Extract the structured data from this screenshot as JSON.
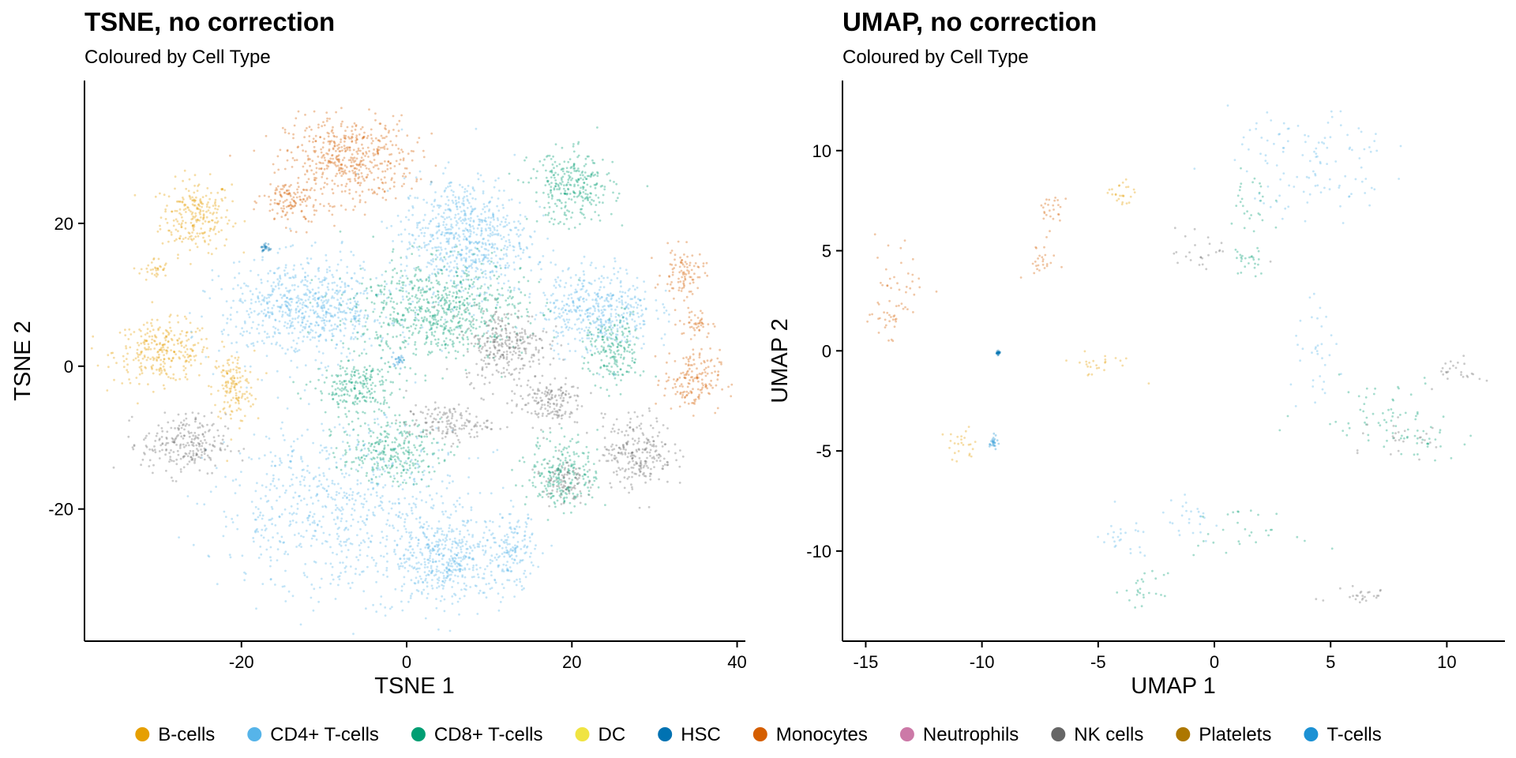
{
  "colors": {
    "B-cells": "#E69F00",
    "CD4+ T-cells": "#56B4E9",
    "CD8+ T-cells": "#009E73",
    "DC": "#F0E442",
    "HSC": "#0072B2",
    "Monocytes": "#D55E00",
    "Neutrophils": "#CC79A7",
    "NK cells": "#666666",
    "Platelets": "#AD7700",
    "T-cells": "#1C91D4"
  },
  "legend": {
    "placement": "bottom",
    "entries": [
      "B-cells",
      "CD4+ T-cells",
      "CD8+ T-cells",
      "DC",
      "HSC",
      "Monocytes",
      "Neutrophils",
      "NK cells",
      "Platelets",
      "T-cells"
    ]
  },
  "chart_data": [
    {
      "type": "scatter",
      "title": "TSNE, no correction",
      "subtitle": "Coloured by Cell Type",
      "xlabel": "TSNE 1",
      "ylabel": "TSNE 2",
      "xlim": [
        -39,
        41
      ],
      "ylim": [
        -38.5,
        40
      ],
      "xticks": [
        -20,
        0,
        20,
        40
      ],
      "yticks": [
        20,
        0,
        -20
      ],
      "grid": false,
      "clusters": [
        {
          "type": "B-cells",
          "cx": -25.5,
          "cy": 21,
          "sx": 2.5,
          "sy": 3
        },
        {
          "type": "B-cells",
          "cx": -29.5,
          "cy": 2,
          "sx": 3.5,
          "sy": 2.5
        },
        {
          "type": "B-cells",
          "cx": -21,
          "cy": -3,
          "sx": 1.5,
          "sy": 3
        },
        {
          "type": "B-cells",
          "cx": -30.5,
          "cy": 13.5,
          "sx": 1,
          "sy": 1
        },
        {
          "type": "Monocytes",
          "cx": -7,
          "cy": 29,
          "sx": 4.5,
          "sy": 3.5
        },
        {
          "type": "Monocytes",
          "cx": -14,
          "cy": 23,
          "sx": 2,
          "sy": 2
        },
        {
          "type": "Monocytes",
          "cx": 33.5,
          "cy": 13,
          "sx": 1.5,
          "sy": 2
        },
        {
          "type": "Monocytes",
          "cx": 34.5,
          "cy": -2,
          "sx": 2,
          "sy": 2.5
        },
        {
          "type": "Monocytes",
          "cx": 35,
          "cy": 6,
          "sx": 1.2,
          "sy": 1.2
        },
        {
          "type": "CD4+ T-cells",
          "cx": 7,
          "cy": 18,
          "sx": 4.5,
          "sy": 5
        },
        {
          "type": "CD4+ T-cells",
          "cx": 23,
          "cy": 8,
          "sx": 4,
          "sy": 3.5
        },
        {
          "type": "CD4+ T-cells",
          "cx": -12,
          "cy": 8,
          "sx": 6,
          "sy": 4
        },
        {
          "type": "CD4+ T-cells",
          "cx": -8,
          "cy": -20,
          "sx": 9,
          "sy": 7
        },
        {
          "type": "CD4+ T-cells",
          "cx": 5,
          "cy": -27,
          "sx": 4,
          "sy": 3.5
        },
        {
          "type": "CD4+ T-cells",
          "cx": 13,
          "cy": -26,
          "sx": 1.5,
          "sy": 3
        },
        {
          "type": "CD8+ T-cells",
          "cx": 20,
          "cy": 25,
          "sx": 3,
          "sy": 3
        },
        {
          "type": "CD8+ T-cells",
          "cx": 4,
          "cy": 8,
          "sx": 6,
          "sy": 4
        },
        {
          "type": "CD8+ T-cells",
          "cx": -6,
          "cy": -3,
          "sx": 3,
          "sy": 2.5
        },
        {
          "type": "CD8+ T-cells",
          "cx": -2,
          "cy": -12,
          "sx": 3.5,
          "sy": 2.5
        },
        {
          "type": "CD8+ T-cells",
          "cx": 19,
          "cy": -15,
          "sx": 2.5,
          "sy": 3
        },
        {
          "type": "CD8+ T-cells",
          "cx": 25,
          "cy": 2,
          "sx": 2,
          "sy": 3
        },
        {
          "type": "NK cells",
          "cx": -27,
          "cy": -11,
          "sx": 3,
          "sy": 2.5
        },
        {
          "type": "NK cells",
          "cx": 12,
          "cy": 3,
          "sx": 3,
          "sy": 3
        },
        {
          "type": "NK cells",
          "cx": 5,
          "cy": -8,
          "sx": 3,
          "sy": 1.5
        },
        {
          "type": "NK cells",
          "cx": 17,
          "cy": -5,
          "sx": 2.5,
          "sy": 2
        },
        {
          "type": "NK cells",
          "cx": 28,
          "cy": -12,
          "sx": 2.5,
          "sy": 3
        },
        {
          "type": "NK cells",
          "cx": 19,
          "cy": -16,
          "sx": 1.5,
          "sy": 2
        },
        {
          "type": "HSC",
          "cx": -17,
          "cy": 16.5,
          "sx": 0.4,
          "sy": 0.4
        },
        {
          "type": "T-cells",
          "cx": -1,
          "cy": 1,
          "sx": 0.5,
          "sy": 0.5
        }
      ]
    },
    {
      "type": "scatter",
      "title": "UMAP, no correction",
      "subtitle": "Coloured by Cell Type",
      "xlabel": "UMAP 1",
      "ylabel": "UMAP 2",
      "xlim": [
        -16,
        12.5
      ],
      "ylim": [
        -14.5,
        13.5
      ],
      "xticks": [
        -15,
        -10,
        -5,
        0,
        5,
        10
      ],
      "yticks": [
        10,
        5,
        0,
        -5,
        -10
      ],
      "grid": false,
      "clusters": [
        {
          "type": "CD4+ T-cells",
          "cx": 4,
          "cy": 10,
          "sx": 2,
          "sy": 1.2
        },
        {
          "type": "CD4+ T-cells",
          "cx": 5,
          "cy": 8,
          "sx": 1.8,
          "sy": 0.7
        },
        {
          "type": "CD4+ T-cells",
          "cx": 4.5,
          "cy": -0.5,
          "sx": 0.7,
          "sy": 1.5
        },
        {
          "type": "CD4+ T-cells",
          "cx": -4,
          "cy": -9.5,
          "sx": 0.8,
          "sy": 0.7
        },
        {
          "type": "CD4+ T-cells",
          "cx": -1,
          "cy": -8.5,
          "sx": 0.8,
          "sy": 0.6
        },
        {
          "type": "CD8+ T-cells",
          "cx": 1.5,
          "cy": 7,
          "sx": 0.6,
          "sy": 1.5
        },
        {
          "type": "CD8+ T-cells",
          "cx": 1.5,
          "cy": 4.5,
          "sx": 0.4,
          "sy": 0.5
        },
        {
          "type": "CD8+ T-cells",
          "cx": 7,
          "cy": -3,
          "sx": 1.8,
          "sy": 1
        },
        {
          "type": "CD8+ T-cells",
          "cx": 9,
          "cy": -4.5,
          "sx": 0.8,
          "sy": 0.5
        },
        {
          "type": "CD8+ T-cells",
          "cx": 1,
          "cy": -9,
          "sx": 1.5,
          "sy": 0.6
        },
        {
          "type": "CD8+ T-cells",
          "cx": -3,
          "cy": -12,
          "sx": 0.5,
          "sy": 0.5
        },
        {
          "type": "Monocytes",
          "cx": -13.5,
          "cy": 3.5,
          "sx": 0.8,
          "sy": 1.4
        },
        {
          "type": "Monocytes",
          "cx": -14,
          "cy": 1.5,
          "sx": 0.4,
          "sy": 0.5
        },
        {
          "type": "Monocytes",
          "cx": -7.5,
          "cy": 4.5,
          "sx": 0.4,
          "sy": 0.5
        },
        {
          "type": "Monocytes",
          "cx": -7,
          "cy": 7,
          "sx": 0.4,
          "sy": 0.5
        },
        {
          "type": "B-cells",
          "cx": -4,
          "cy": 7.7,
          "sx": 0.3,
          "sy": 0.5
        },
        {
          "type": "B-cells",
          "cx": -5,
          "cy": -0.6,
          "sx": 1,
          "sy": 0.4
        },
        {
          "type": "B-cells",
          "cx": -11,
          "cy": -4.8,
          "sx": 0.5,
          "sy": 0.5
        },
        {
          "type": "NK cells",
          "cx": -0.5,
          "cy": 5,
          "sx": 0.8,
          "sy": 0.7
        },
        {
          "type": "NK cells",
          "cx": 10.5,
          "cy": -1,
          "sx": 0.6,
          "sy": 0.4
        },
        {
          "type": "NK cells",
          "cx": 8.5,
          "cy": -4.5,
          "sx": 1,
          "sy": 0.6
        },
        {
          "type": "NK cells",
          "cx": 6,
          "cy": -12.2,
          "sx": 1,
          "sy": 0.4
        },
        {
          "type": "HSC",
          "cx": -9.3,
          "cy": -0.1,
          "sx": 0.05,
          "sy": 0.05
        },
        {
          "type": "T-cells",
          "cx": -9.5,
          "cy": -4.6,
          "sx": 0.1,
          "sy": 0.2
        }
      ]
    }
  ]
}
